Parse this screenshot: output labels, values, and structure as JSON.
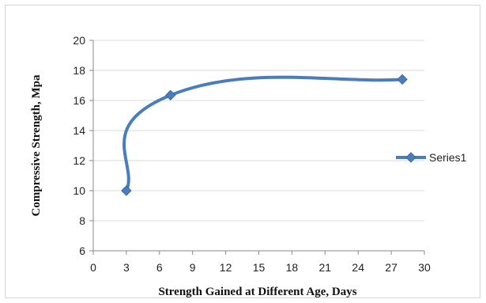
{
  "chart_data": {
    "type": "line",
    "title": "",
    "xlabel": "Strength Gained at Different Age, Days",
    "ylabel": "Compressive Strength, Mpa",
    "xlim": [
      0,
      30
    ],
    "ylim": [
      6,
      20
    ],
    "xticks": [
      "0",
      "3",
      "6",
      "9",
      "12",
      "15",
      "18",
      "21",
      "24",
      "27",
      "30"
    ],
    "yticks": [
      "6",
      "8",
      "10",
      "12",
      "14",
      "16",
      "18",
      "20"
    ],
    "grid": "horizontal",
    "smooth": true,
    "legend": "right",
    "series": [
      {
        "name": "Series1",
        "color": "#4a7ebb",
        "marker": "diamond",
        "points": [
          {
            "x": 3,
            "y": 10.0
          },
          {
            "x": 7,
            "y": 16.35
          },
          {
            "x": 28,
            "y": 17.4
          }
        ]
      }
    ]
  }
}
